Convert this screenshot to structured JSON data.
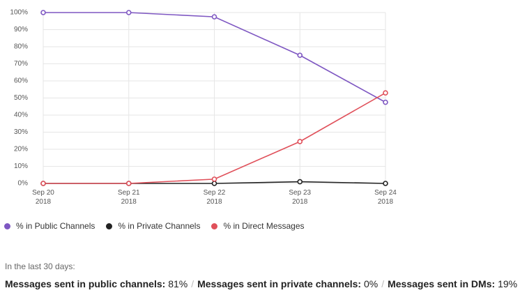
{
  "chart_data": {
    "type": "line",
    "categories": [
      "Sep 20 2018",
      "Sep 21 2018",
      "Sep 22 2018",
      "Sep 23 2018",
      "Sep 24 2018"
    ],
    "series": [
      {
        "name": "% in Public Channels",
        "color": "#7e57c2",
        "values": [
          100,
          100,
          97.5,
          75,
          47.5
        ]
      },
      {
        "name": "% in Private Channels",
        "color": "#222222",
        "values": [
          0,
          0,
          0,
          1,
          0
        ]
      },
      {
        "name": "% in Direct Messages",
        "color": "#e0505a",
        "values": [
          0,
          0,
          2.5,
          24.5,
          53
        ]
      }
    ],
    "ylim": [
      0,
      100
    ],
    "yticks": [
      {
        "value": 0,
        "label": "0%"
      },
      {
        "value": 10,
        "label": "10%"
      },
      {
        "value": 20,
        "label": "20%"
      },
      {
        "value": 30,
        "label": "30%"
      },
      {
        "value": 40,
        "label": "40%"
      },
      {
        "value": 50,
        "label": "50%"
      },
      {
        "value": 60,
        "label": "60%"
      },
      {
        "value": 70,
        "label": "70%"
      },
      {
        "value": 80,
        "label": "80%"
      },
      {
        "value": 90,
        "label": "90%"
      },
      {
        "value": 100,
        "label": "100%"
      }
    ],
    "grid": true
  },
  "footer": {
    "period": "In the last 30 days:",
    "separator": "/",
    "stats": [
      {
        "label": "Messages sent in public channels:",
        "value": "81%"
      },
      {
        "label": "Messages sent in private channels:",
        "value": "0%"
      },
      {
        "label": "Messages sent in DMs:",
        "value": "19%"
      }
    ]
  }
}
